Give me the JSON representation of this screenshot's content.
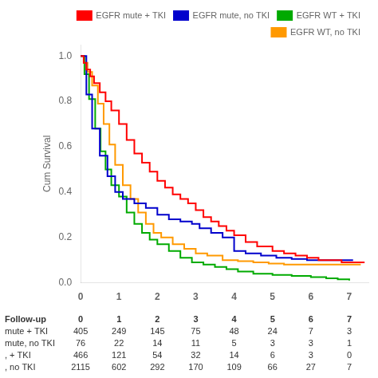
{
  "chart_data": {
    "type": "line",
    "line_style": "step",
    "ylabel": "Cum Survival",
    "xlim": [
      0,
      7.5
    ],
    "ylim": [
      0.0,
      1.05
    ],
    "xticks": [
      0,
      1,
      2,
      3,
      4,
      5,
      6,
      7
    ],
    "yticks": [
      {
        "value": 0.0,
        "label": "0.0"
      },
      0.2,
      0.4,
      0.6,
      0.8,
      {
        "value": 1.0,
        "label": "1.0"
      }
    ],
    "grid": false,
    "legend": "upper right",
    "series": [
      {
        "name": "EGFR mute + TKI",
        "color": "#ff0000",
        "x": [
          0,
          0.08,
          0.15,
          0.25,
          0.35,
          0.5,
          0.65,
          0.8,
          1.0,
          1.2,
          1.4,
          1.6,
          1.8,
          2.0,
          2.2,
          2.4,
          2.6,
          2.8,
          3.0,
          3.2,
          3.4,
          3.6,
          3.8,
          4.0,
          4.3,
          4.6,
          5.0,
          5.3,
          5.6,
          5.9,
          6.2,
          6.5,
          6.8,
          7.1,
          7.4
        ],
        "values": [
          1.0,
          0.97,
          0.94,
          0.91,
          0.88,
          0.84,
          0.8,
          0.76,
          0.7,
          0.63,
          0.57,
          0.53,
          0.49,
          0.45,
          0.42,
          0.39,
          0.37,
          0.35,
          0.32,
          0.29,
          0.27,
          0.25,
          0.23,
          0.21,
          0.18,
          0.16,
          0.14,
          0.13,
          0.12,
          0.11,
          0.1,
          0.1,
          0.09,
          0.09,
          0.09
        ]
      },
      {
        "name": "EGFR mute, no TKI",
        "color": "#0000cc",
        "x": [
          0,
          0.15,
          0.3,
          0.5,
          0.7,
          0.9,
          1.1,
          1.4,
          1.7,
          2.0,
          2.3,
          2.6,
          2.9,
          3.1,
          3.4,
          3.7,
          4.0,
          4.3,
          4.7,
          5.1,
          5.5,
          5.9,
          6.3,
          6.7,
          7.1
        ],
        "values": [
          1.0,
          0.83,
          0.68,
          0.56,
          0.47,
          0.4,
          0.37,
          0.35,
          0.33,
          0.3,
          0.28,
          0.27,
          0.26,
          0.24,
          0.22,
          0.2,
          0.14,
          0.13,
          0.12,
          0.11,
          0.105,
          0.1,
          0.1,
          0.1,
          0.1
        ]
      },
      {
        "name": "EGFR WT + TKI",
        "color": "#00aa00",
        "x": [
          0,
          0.1,
          0.22,
          0.38,
          0.52,
          0.65,
          0.8,
          1.0,
          1.2,
          1.4,
          1.6,
          1.8,
          2.0,
          2.3,
          2.6,
          2.9,
          3.2,
          3.5,
          3.8,
          4.1,
          4.5,
          5.0,
          5.5,
          6.0,
          6.4,
          6.7,
          7.0
        ],
        "values": [
          1.0,
          0.92,
          0.81,
          0.68,
          0.58,
          0.5,
          0.43,
          0.38,
          0.31,
          0.26,
          0.22,
          0.19,
          0.17,
          0.14,
          0.11,
          0.09,
          0.08,
          0.07,
          0.06,
          0.05,
          0.04,
          0.035,
          0.03,
          0.025,
          0.02,
          0.015,
          0.01
        ]
      },
      {
        "name": "EGFR WT, no TKI",
        "color": "#ff9900",
        "x": [
          0,
          0.08,
          0.18,
          0.3,
          0.45,
          0.6,
          0.75,
          0.9,
          1.1,
          1.3,
          1.5,
          1.7,
          1.9,
          2.1,
          2.4,
          2.7,
          3.0,
          3.3,
          3.7,
          4.1,
          4.5,
          4.9,
          5.3,
          5.7,
          6.1,
          6.5,
          6.9,
          7.3
        ],
        "values": [
          1.0,
          0.97,
          0.93,
          0.87,
          0.79,
          0.7,
          0.61,
          0.52,
          0.43,
          0.37,
          0.31,
          0.26,
          0.22,
          0.2,
          0.17,
          0.15,
          0.13,
          0.12,
          0.1,
          0.095,
          0.09,
          0.085,
          0.08,
          0.08,
          0.08,
          0.08,
          0.08,
          0.08
        ]
      }
    ],
    "table": {
      "header": [
        "Follow-up",
        0,
        1,
        2,
        3,
        4,
        5,
        6,
        7
      ],
      "rows": [
        {
          "label": "mute + TKI",
          "values": [
            405,
            249,
            145,
            75,
            48,
            24,
            7,
            3
          ]
        },
        {
          "label": "mute, no TKI",
          "values": [
            76,
            22,
            14,
            11,
            5,
            3,
            3,
            1
          ]
        },
        {
          "label": ", + TKI",
          "values": [
            466,
            121,
            54,
            32,
            14,
            6,
            3,
            0
          ]
        },
        {
          "label": ", no TKI",
          "values": [
            2115,
            602,
            292,
            170,
            109,
            66,
            27,
            7
          ]
        }
      ]
    }
  }
}
